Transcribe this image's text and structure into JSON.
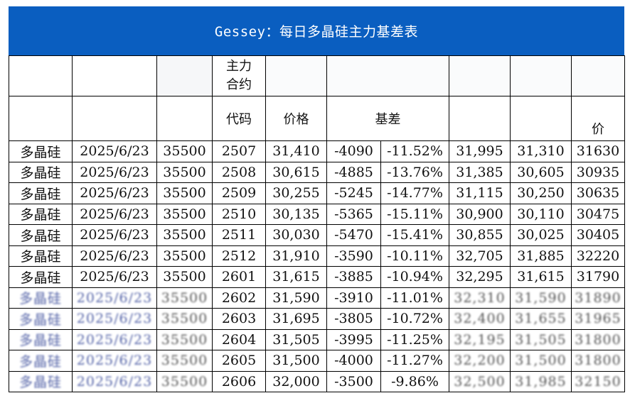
{
  "title": "Gessey：每日多晶硅主力基差表",
  "headers": {
    "contract_line1": "主力",
    "contract_line2": "合约",
    "code": "代码",
    "price": "价格",
    "basis": "基差",
    "last_col_fragment": "价"
  },
  "rows": [
    {
      "product": "多晶硅",
      "date": "2025/6/23",
      "spot": "35500",
      "code": "2507",
      "price": "31,410",
      "basis": "-4090",
      "basis_pct": "-11.52%",
      "c8": "31,995",
      "c9": "31,310",
      "c10": "31630"
    },
    {
      "product": "多晶硅",
      "date": "2025/6/23",
      "spot": "35500",
      "code": "2508",
      "price": "30,615",
      "basis": "-4885",
      "basis_pct": "-13.76%",
      "c8": "31,385",
      "c9": "30,605",
      "c10": "30935"
    },
    {
      "product": "多晶硅",
      "date": "2025/6/23",
      "spot": "35500",
      "code": "2509",
      "price": "30,255",
      "basis": "-5245",
      "basis_pct": "-14.77%",
      "c8": "31,115",
      "c9": "30,250",
      "c10": "30635"
    },
    {
      "product": "多晶硅",
      "date": "2025/6/23",
      "spot": "35500",
      "code": "2510",
      "price": "30,135",
      "basis": "-5365",
      "basis_pct": "-15.11%",
      "c8": "30,900",
      "c9": "30,110",
      "c10": "30475"
    },
    {
      "product": "多晶硅",
      "date": "2025/6/23",
      "spot": "35500",
      "code": "2511",
      "price": "30,030",
      "basis": "-5470",
      "basis_pct": "-15.41%",
      "c8": "30,855",
      "c9": "30,025",
      "c10": "30405"
    },
    {
      "product": "多晶硅",
      "date": "2025/6/23",
      "spot": "35500",
      "code": "2512",
      "price": "31,910",
      "basis": "-3590",
      "basis_pct": "-10.11%",
      "c8": "32,705",
      "c9": "31,885",
      "c10": "32220"
    },
    {
      "product": "多晶硅",
      "date": "2025/6/23",
      "spot": "35500",
      "code": "2601",
      "price": "31,615",
      "basis": "-3885",
      "basis_pct": "-10.94%",
      "c8": "32,295",
      "c9": "31,615",
      "c10": "31790"
    },
    {
      "product": "多晶硅",
      "date": "2025/6/23",
      "spot": "35500",
      "code": "2602",
      "price": "31,590",
      "basis": "-3910",
      "basis_pct": "-11.01%",
      "c8": "32,310",
      "c9": "31,590",
      "c10": "31890"
    },
    {
      "product": "多晶硅",
      "date": "2025/6/23",
      "spot": "35500",
      "code": "2603",
      "price": "31,695",
      "basis": "-3805",
      "basis_pct": "-10.72%",
      "c8": "32,400",
      "c9": "31,655",
      "c10": "31965"
    },
    {
      "product": "多晶硅",
      "date": "2025/6/23",
      "spot": "35500",
      "code": "2604",
      "price": "31,505",
      "basis": "-3995",
      "basis_pct": "-11.25%",
      "c8": "32,195",
      "c9": "31,505",
      "c10": "31800"
    },
    {
      "product": "多晶硅",
      "date": "2025/6/23",
      "spot": "35500",
      "code": "2605",
      "price": "31,500",
      "basis": "-4000",
      "basis_pct": "-11.27%",
      "c8": "32,200",
      "c9": "31,500",
      "c10": "31800"
    },
    {
      "product": "多晶硅",
      "date": "2025/6/23",
      "spot": "35500",
      "code": "2606",
      "price": "32,000",
      "basis": "-3500",
      "basis_pct": "-9.86%",
      "c8": "32,500",
      "c9": "31,985",
      "c10": "32150"
    }
  ],
  "colors": {
    "title_bg": "#0a5ec0",
    "title_text": "#ffffff",
    "product_text": "#1c2d7a",
    "date_text": "#2c55b0",
    "negative_basis": "#18a84a"
  }
}
